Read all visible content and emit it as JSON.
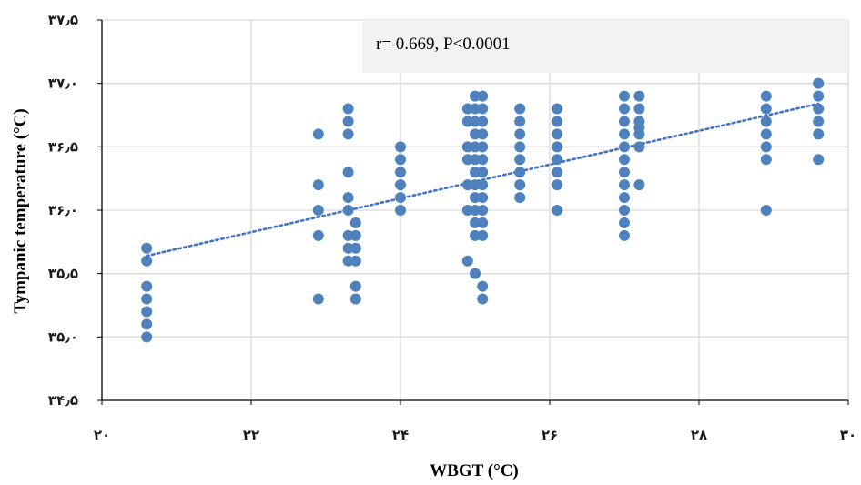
{
  "chart_data": {
    "type": "scatter",
    "xlabel": "WBGT (°C)",
    "ylabel": "Tympanic temperature (°C)",
    "xlim": [
      20,
      30
    ],
    "ylim": [
      34.5,
      37.5
    ],
    "x_ticks": [
      20,
      22,
      24,
      26,
      28,
      30
    ],
    "y_ticks": [
      34.5,
      35.0,
      35.5,
      36.0,
      36.5,
      37.0,
      37.5
    ],
    "x_tick_labels": [
      "۲۰",
      "۲۲",
      "۲۴",
      "۲۶",
      "۲۸",
      "۳۰"
    ],
    "y_tick_labels": [
      "۳۴٫۵",
      "۳۵٫۰",
      "۳۵٫۵",
      "۳۶٫۰",
      "۳۶٫۵",
      "۳۷٫۰",
      "۳۷٫۵"
    ],
    "grid": true,
    "annotation": "r= 0.669, P<0.0001",
    "trendline": {
      "style": "dotted",
      "x": [
        20.6,
        29.6
      ],
      "y": [
        35.64,
        36.84
      ]
    },
    "marker_color": "#4f81bd",
    "trend_color": "#4472c4",
    "series": [
      {
        "points": [
          [
            20.6,
            35.0
          ],
          [
            20.6,
            35.1
          ],
          [
            20.6,
            35.2
          ],
          [
            20.6,
            35.3
          ],
          [
            20.6,
            35.4
          ],
          [
            20.6,
            35.6
          ],
          [
            20.6,
            35.7
          ],
          [
            22.9,
            35.3
          ],
          [
            22.9,
            35.8
          ],
          [
            22.9,
            36.0
          ],
          [
            22.9,
            36.2
          ],
          [
            22.9,
            36.6
          ],
          [
            23.3,
            35.6
          ],
          [
            23.3,
            35.7
          ],
          [
            23.3,
            35.8
          ],
          [
            23.3,
            36.0
          ],
          [
            23.3,
            36.1
          ],
          [
            23.3,
            36.3
          ],
          [
            23.3,
            36.6
          ],
          [
            23.3,
            36.7
          ],
          [
            23.3,
            36.8
          ],
          [
            23.4,
            35.3
          ],
          [
            23.4,
            35.4
          ],
          [
            23.4,
            35.6
          ],
          [
            23.4,
            35.7
          ],
          [
            23.4,
            35.8
          ],
          [
            23.4,
            35.9
          ],
          [
            24.0,
            36.0
          ],
          [
            24.0,
            36.1
          ],
          [
            24.0,
            36.2
          ],
          [
            24.0,
            36.3
          ],
          [
            24.0,
            36.4
          ],
          [
            24.0,
            36.5
          ],
          [
            24.9,
            35.6
          ],
          [
            24.9,
            36.0
          ],
          [
            24.9,
            36.2
          ],
          [
            24.9,
            36.4
          ],
          [
            24.9,
            36.5
          ],
          [
            24.9,
            36.7
          ],
          [
            24.9,
            36.8
          ],
          [
            25.0,
            35.5
          ],
          [
            25.0,
            35.8
          ],
          [
            25.0,
            35.9
          ],
          [
            25.0,
            36.0
          ],
          [
            25.0,
            36.1
          ],
          [
            25.0,
            36.2
          ],
          [
            25.0,
            36.3
          ],
          [
            25.0,
            36.4
          ],
          [
            25.0,
            36.5
          ],
          [
            25.0,
            36.6
          ],
          [
            25.0,
            36.7
          ],
          [
            25.0,
            36.8
          ],
          [
            25.0,
            36.9
          ],
          [
            25.1,
            35.3
          ],
          [
            25.1,
            35.4
          ],
          [
            25.1,
            35.8
          ],
          [
            25.1,
            35.9
          ],
          [
            25.1,
            36.0
          ],
          [
            25.1,
            36.1
          ],
          [
            25.1,
            36.2
          ],
          [
            25.1,
            36.3
          ],
          [
            25.1,
            36.4
          ],
          [
            25.1,
            36.5
          ],
          [
            25.1,
            36.6
          ],
          [
            25.1,
            36.7
          ],
          [
            25.1,
            36.8
          ],
          [
            25.1,
            36.9
          ],
          [
            25.6,
            36.1
          ],
          [
            25.6,
            36.2
          ],
          [
            25.6,
            36.3
          ],
          [
            25.6,
            36.4
          ],
          [
            25.6,
            36.5
          ],
          [
            25.6,
            36.6
          ],
          [
            25.6,
            36.7
          ],
          [
            25.6,
            36.8
          ],
          [
            26.1,
            36.0
          ],
          [
            26.1,
            36.2
          ],
          [
            26.1,
            36.3
          ],
          [
            26.1,
            36.4
          ],
          [
            26.1,
            36.5
          ],
          [
            26.1,
            36.6
          ],
          [
            26.1,
            36.7
          ],
          [
            26.1,
            36.8
          ],
          [
            27.0,
            35.8
          ],
          [
            27.0,
            35.9
          ],
          [
            27.0,
            36.0
          ],
          [
            27.0,
            36.1
          ],
          [
            27.0,
            36.2
          ],
          [
            27.0,
            36.3
          ],
          [
            27.0,
            36.4
          ],
          [
            27.0,
            36.5
          ],
          [
            27.0,
            36.6
          ],
          [
            27.0,
            36.7
          ],
          [
            27.0,
            36.8
          ],
          [
            27.0,
            36.9
          ],
          [
            27.2,
            36.2
          ],
          [
            27.2,
            36.5
          ],
          [
            27.2,
            36.6
          ],
          [
            27.2,
            36.65
          ],
          [
            27.2,
            36.7
          ],
          [
            27.2,
            36.8
          ],
          [
            27.2,
            36.9
          ],
          [
            28.9,
            36.0
          ],
          [
            28.9,
            36.4
          ],
          [
            28.9,
            36.5
          ],
          [
            28.9,
            36.6
          ],
          [
            28.9,
            36.7
          ],
          [
            28.9,
            36.8
          ],
          [
            28.9,
            36.9
          ],
          [
            29.6,
            36.4
          ],
          [
            29.6,
            36.6
          ],
          [
            29.6,
            36.7
          ],
          [
            29.6,
            36.8
          ],
          [
            29.6,
            36.9
          ],
          [
            29.6,
            37.0
          ]
        ]
      }
    ]
  }
}
